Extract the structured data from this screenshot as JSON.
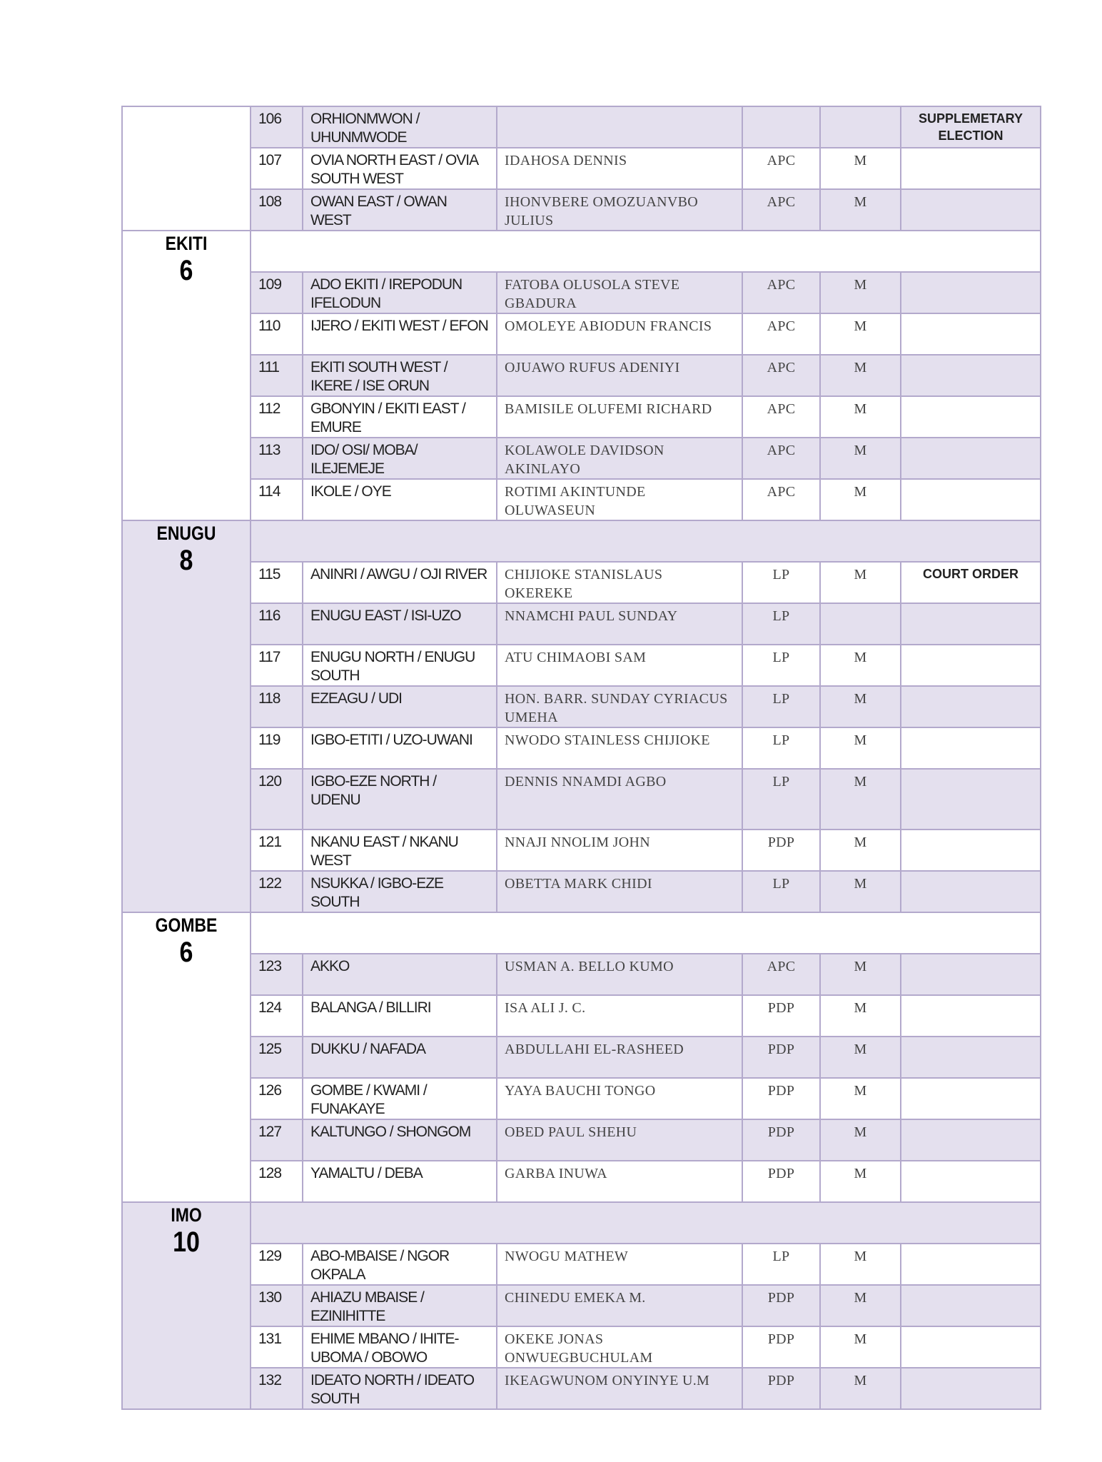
{
  "colors": {
    "shade": "#e4e0ee",
    "border": "#b3a9cc"
  },
  "blocks": [
    {
      "state": "",
      "count": "",
      "header": false,
      "shadeState": false,
      "rows": [
        {
          "no": "106",
          "constituency": "ORHIONMWON / UHUNMWODE",
          "name": "",
          "party": "",
          "gender": "",
          "remark": "SUPPLEMETARY ELECTION"
        },
        {
          "no": "107",
          "constituency": "OVIA NORTH EAST / OVIA SOUTH WEST",
          "name": "IDAHOSA DENNIS",
          "party": "APC",
          "gender": "M",
          "remark": ""
        },
        {
          "no": "108",
          "constituency": "OWAN EAST / OWAN WEST",
          "name": "IHONVBERE OMOZUANVBO JULIUS",
          "party": "APC",
          "gender": "M",
          "remark": ""
        }
      ]
    },
    {
      "state": "EKITI",
      "count": "6",
      "header": true,
      "shadeState": false,
      "rows": [
        {
          "no": "109",
          "constituency": "ADO EKITI / IREPODUN IFELODUN",
          "name": "FATOBA OLUSOLA STEVE GBADURA",
          "party": "APC",
          "gender": "M",
          "remark": ""
        },
        {
          "no": "110",
          "constituency": "IJERO / EKITI WEST / EFON",
          "name": "OMOLEYE ABIODUN FRANCIS",
          "party": "APC",
          "gender": "M",
          "remark": ""
        },
        {
          "no": "111",
          "constituency": "EKITI SOUTH WEST / IKERE / ISE ORUN",
          "name": "OJUAWO RUFUS ADENIYI",
          "party": "APC",
          "gender": "M",
          "remark": ""
        },
        {
          "no": "112",
          "constituency": "GBONYIN / EKITI EAST / EMURE",
          "name": "BAMISILE OLUFEMI RICHARD",
          "party": "APC",
          "gender": "M",
          "remark": ""
        },
        {
          "no": "113",
          "constituency": "IDO/ OSI/ MOBA/ ILEJEMEJE",
          "name": "KOLAWOLE DAVIDSON AKINLAYO",
          "party": "APC",
          "gender": "M",
          "remark": ""
        },
        {
          "no": "114",
          "constituency": "IKOLE / OYE",
          "name": "ROTIMI AKINTUNDE OLUWASEUN",
          "party": "APC",
          "gender": "M",
          "remark": ""
        }
      ]
    },
    {
      "state": "ENUGU",
      "count": "8",
      "header": true,
      "shadeState": true,
      "rows": [
        {
          "no": "115",
          "constituency": "ANINRI / AWGU / OJI RIVER",
          "name": "CHIJIOKE STANISLAUS OKEREKE",
          "party": "LP",
          "gender": "M",
          "remark": "COURT ORDER"
        },
        {
          "no": "116",
          "constituency": "ENUGU EAST / ISI-UZO",
          "name": "NNAMCHI PAUL SUNDAY",
          "party": "LP",
          "gender": "",
          "remark": ""
        },
        {
          "no": "117",
          "constituency": "ENUGU NORTH / ENUGU SOUTH",
          "name": "ATU CHIMAOBI SAM",
          "party": "LP",
          "gender": "M",
          "remark": ""
        },
        {
          "no": "118",
          "constituency": "EZEAGU / UDI",
          "name": "HON. BARR. SUNDAY CYRIACUS UMEHA",
          "party": "LP",
          "gender": "M",
          "remark": ""
        },
        {
          "no": "119",
          "constituency": "IGBO-ETITI / UZO-UWANI",
          "name": "NWODO STAINLESS CHIJIOKE",
          "party": "LP",
          "gender": "M",
          "remark": ""
        },
        {
          "no": "120",
          "constituency": "IGBO-EZE NORTH / UDENU",
          "name": "DENNIS NNAMDI AGBO",
          "party": "LP",
          "gender": "M",
          "remark": ""
        },
        {
          "no": "121",
          "constituency": "NKANU EAST / NKANU WEST",
          "name": "NNAJI NNOLIM JOHN",
          "party": "PDP",
          "gender": "M",
          "remark": ""
        },
        {
          "no": "122",
          "constituency": "NSUKKA / IGBO-EZE SOUTH",
          "name": "OBETTA MARK CHIDI",
          "party": "LP",
          "gender": "M",
          "remark": ""
        }
      ]
    },
    {
      "state": "GOMBE",
      "count": "6",
      "header": true,
      "shadeState": false,
      "rows": [
        {
          "no": "123",
          "constituency": "AKKO",
          "name": "USMAN A. BELLO KUMO",
          "party": "APC",
          "gender": "M",
          "remark": ""
        },
        {
          "no": "124",
          "constituency": "BALANGA / BILLIRI",
          "name": "ISA ALI J. C.",
          "party": "PDP",
          "gender": "M",
          "remark": ""
        },
        {
          "no": "125",
          "constituency": "DUKKU / NAFADA",
          "name": "ABDULLAHI EL-RASHEED",
          "party": "PDP",
          "gender": "M",
          "remark": ""
        },
        {
          "no": "126",
          "constituency": "GOMBE / KWAMI / FUNAKAYE",
          "name": "YAYA BAUCHI TONGO",
          "party": "PDP",
          "gender": "M",
          "remark": ""
        },
        {
          "no": "127",
          "constituency": "KALTUNGO / SHONGOM",
          "name": "OBED PAUL SHEHU",
          "party": "PDP",
          "gender": "M",
          "remark": ""
        },
        {
          "no": "128",
          "constituency": "YAMALTU / DEBA",
          "name": "GARBA INUWA",
          "party": "PDP",
          "gender": "M",
          "remark": ""
        }
      ]
    },
    {
      "state": "IMO",
      "count": "10",
      "header": true,
      "shadeState": true,
      "rows": [
        {
          "no": "129",
          "constituency": "ABO-MBAISE / NGOR OKPALA",
          "name": "NWOGU MATHEW",
          "party": "LP",
          "gender": "M",
          "remark": ""
        },
        {
          "no": "130",
          "constituency": "AHIAZU MBAISE / EZINIHITTE",
          "name": "CHINEDU EMEKA M.",
          "party": "PDP",
          "gender": "M",
          "remark": ""
        },
        {
          "no": "131",
          "constituency": "EHIME MBANO / IHITE-UBOMA / OBOWO",
          "name": "OKEKE JONAS ONWUEGBUCHULAM",
          "party": "PDP",
          "gender": "M",
          "remark": ""
        },
        {
          "no": "132",
          "constituency": "IDEATO NORTH / IDEATO SOUTH",
          "name": "IKEAGWUNOM ONYINYE U.M",
          "party": "PDP",
          "gender": "M",
          "remark": ""
        }
      ]
    }
  ]
}
